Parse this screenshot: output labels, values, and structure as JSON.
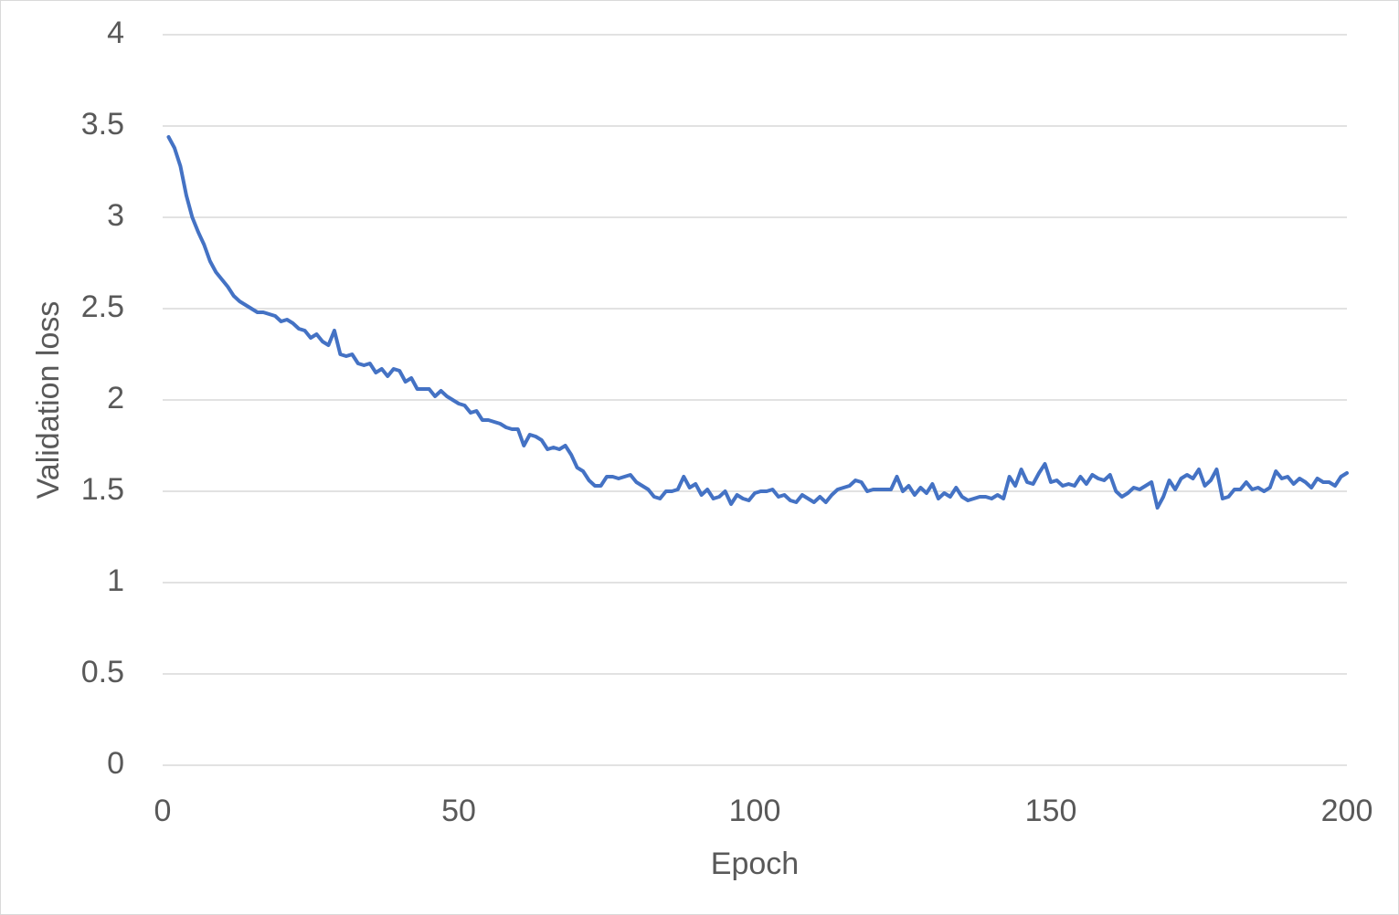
{
  "chart_data": {
    "type": "line",
    "x_label": "Epoch",
    "y_label": "Validation loss",
    "xlim": [
      0,
      200
    ],
    "xticks": [
      0,
      50,
      100,
      150,
      200
    ],
    "ylim": [
      0,
      4
    ],
    "yticks": [
      0,
      0.5,
      1,
      1.5,
      2,
      2.5,
      3,
      3.5,
      4
    ],
    "grid": true,
    "x": [
      1,
      2,
      3,
      4,
      5,
      6,
      7,
      8,
      9,
      10,
      11,
      12,
      13,
      14,
      15,
      16,
      17,
      18,
      19,
      20,
      21,
      22,
      23,
      24,
      25,
      26,
      27,
      28,
      29,
      30,
      31,
      32,
      33,
      34,
      35,
      36,
      37,
      38,
      39,
      40,
      41,
      42,
      43,
      44,
      45,
      46,
      47,
      48,
      49,
      50,
      51,
      52,
      53,
      54,
      55,
      56,
      57,
      58,
      59,
      60,
      61,
      62,
      63,
      64,
      65,
      66,
      67,
      68,
      69,
      70,
      71,
      72,
      73,
      74,
      75,
      76,
      77,
      78,
      79,
      80,
      81,
      82,
      83,
      84,
      85,
      86,
      87,
      88,
      89,
      90,
      91,
      92,
      93,
      94,
      95,
      96,
      97,
      98,
      99,
      100,
      101,
      102,
      103,
      104,
      105,
      106,
      107,
      108,
      109,
      110,
      111,
      112,
      113,
      114,
      115,
      116,
      117,
      118,
      119,
      120,
      121,
      122,
      123,
      124,
      125,
      126,
      127,
      128,
      129,
      130,
      131,
      132,
      133,
      134,
      135,
      136,
      137,
      138,
      139,
      140,
      141,
      142,
      143,
      144,
      145,
      146,
      147,
      148,
      149,
      150,
      151,
      152,
      153,
      154,
      155,
      156,
      157,
      158,
      159,
      160,
      161,
      162,
      163,
      164,
      165,
      166,
      167,
      168,
      169,
      170,
      171,
      172,
      173,
      174,
      175,
      176,
      177,
      178,
      179,
      180,
      181,
      182,
      183,
      184,
      185,
      186,
      187,
      188,
      189,
      190,
      191,
      192,
      193,
      194,
      195,
      196,
      197,
      198,
      199,
      200
    ],
    "series": [
      {
        "color": "#4472c4",
        "values": [
          3.44,
          3.38,
          3.28,
          3.12,
          3.0,
          2.92,
          2.85,
          2.76,
          2.7,
          2.66,
          2.62,
          2.57,
          2.54,
          2.52,
          2.5,
          2.48,
          2.48,
          2.47,
          2.46,
          2.43,
          2.44,
          2.42,
          2.39,
          2.38,
          2.34,
          2.36,
          2.32,
          2.3,
          2.38,
          2.25,
          2.24,
          2.25,
          2.2,
          2.19,
          2.2,
          2.15,
          2.17,
          2.13,
          2.17,
          2.16,
          2.1,
          2.12,
          2.06,
          2.06,
          2.06,
          2.02,
          2.05,
          2.02,
          2.0,
          1.98,
          1.97,
          1.93,
          1.94,
          1.89,
          1.89,
          1.88,
          1.87,
          1.85,
          1.84,
          1.84,
          1.75,
          1.81,
          1.8,
          1.78,
          1.73,
          1.74,
          1.73,
          1.75,
          1.7,
          1.63,
          1.61,
          1.56,
          1.53,
          1.53,
          1.58,
          1.58,
          1.57,
          1.58,
          1.59,
          1.55,
          1.53,
          1.51,
          1.47,
          1.46,
          1.5,
          1.5,
          1.51,
          1.58,
          1.52,
          1.54,
          1.48,
          1.51,
          1.46,
          1.47,
          1.5,
          1.43,
          1.48,
          1.46,
          1.45,
          1.49,
          1.5,
          1.5,
          1.51,
          1.47,
          1.48,
          1.45,
          1.44,
          1.48,
          1.46,
          1.44,
          1.47,
          1.44,
          1.48,
          1.51,
          1.52,
          1.53,
          1.56,
          1.55,
          1.5,
          1.51,
          1.51,
          1.51,
          1.51,
          1.58,
          1.5,
          1.53,
          1.48,
          1.52,
          1.49,
          1.54,
          1.46,
          1.49,
          1.47,
          1.52,
          1.47,
          1.45,
          1.46,
          1.47,
          1.47,
          1.46,
          1.48,
          1.46,
          1.58,
          1.53,
          1.62,
          1.55,
          1.54,
          1.6,
          1.65,
          1.55,
          1.56,
          1.53,
          1.54,
          1.53,
          1.58,
          1.54,
          1.59,
          1.57,
          1.56,
          1.59,
          1.5,
          1.47,
          1.49,
          1.52,
          1.51,
          1.53,
          1.55,
          1.41,
          1.47,
          1.56,
          1.51,
          1.57,
          1.59,
          1.57,
          1.62,
          1.53,
          1.56,
          1.62,
          1.46,
          1.47,
          1.51,
          1.51,
          1.55,
          1.51,
          1.52,
          1.5,
          1.52,
          1.61,
          1.57,
          1.58,
          1.54,
          1.57,
          1.55,
          1.52,
          1.57,
          1.55,
          1.55,
          1.53,
          1.58,
          1.6
        ]
      }
    ]
  }
}
